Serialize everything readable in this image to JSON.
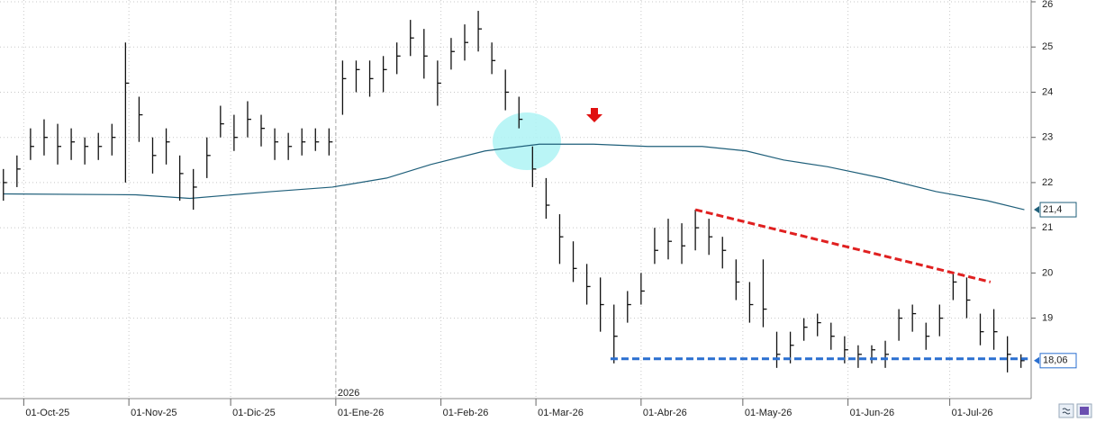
{
  "chart_data": {
    "type": "ohlc",
    "year_marker": {
      "value": 99,
      "label": "2026"
    },
    "xlim": [
      0,
      304
    ],
    "ylim": [
      17.22,
      26.04
    ],
    "xticks": [
      {
        "value": 7,
        "label": "01-Oct-25"
      },
      {
        "value": 38,
        "label": "01-Nov-25"
      },
      {
        "value": 68,
        "label": "01-Dic-25"
      },
      {
        "value": 99,
        "label": "01-Ene-26"
      },
      {
        "value": 130,
        "label": "01-Feb-26"
      },
      {
        "value": 158,
        "label": "01-Mar-26"
      },
      {
        "value": 189,
        "label": "01-Abr-26"
      },
      {
        "value": 219,
        "label": "01-May-26"
      },
      {
        "value": 250,
        "label": "01-Jun-26"
      },
      {
        "value": 280,
        "label": "01-Jul-26"
      }
    ],
    "yticks": [
      19,
      20,
      21,
      22,
      23,
      24,
      25,
      26
    ],
    "grid": true,
    "color": "#111111",
    "x": [
      1,
      5,
      9,
      13,
      17,
      21,
      25,
      29,
      33,
      37,
      41,
      45,
      49,
      53,
      57,
      61,
      65,
      69,
      73,
      77,
      81,
      85,
      89,
      93,
      97,
      101,
      105,
      109,
      113,
      117,
      121,
      125,
      129,
      133,
      137,
      141,
      145,
      149,
      153,
      157,
      161,
      165,
      169,
      173,
      177,
      181,
      185,
      189,
      193,
      197,
      201,
      205,
      209,
      213,
      217,
      221,
      225,
      229,
      233,
      237,
      241,
      245,
      249,
      253,
      257,
      261,
      265,
      269,
      273,
      277,
      281,
      285,
      289,
      293,
      297,
      301
    ],
    "high": [
      22.3,
      22.6,
      23.2,
      23.4,
      23.3,
      23.2,
      23.0,
      23.1,
      23.3,
      25.1,
      23.9,
      23.0,
      23.2,
      22.6,
      22.3,
      23.0,
      23.7,
      23.5,
      23.8,
      23.5,
      23.2,
      23.1,
      23.2,
      23.2,
      23.2,
      24.7,
      24.7,
      24.7,
      24.8,
      25.1,
      25.6,
      25.4,
      24.7,
      25.2,
      25.5,
      25.8,
      25.1,
      24.5,
      23.9,
      22.8,
      22.1,
      21.3,
      20.7,
      20.2,
      19.9,
      19.3,
      19.6,
      20.0,
      21.0,
      21.2,
      21.1,
      21.4,
      21.2,
      20.8,
      20.3,
      19.8,
      20.3,
      18.7,
      18.7,
      19.0,
      19.1,
      18.9,
      18.6,
      18.4,
      18.4,
      18.5,
      19.2,
      19.3,
      18.9,
      19.3,
      20.0,
      19.9,
      19.1,
      19.2,
      18.6,
      18.2
    ],
    "low": [
      21.6,
      21.9,
      22.5,
      22.6,
      22.4,
      22.5,
      22.4,
      22.5,
      22.6,
      22.0,
      22.9,
      22.2,
      22.4,
      21.6,
      21.4,
      22.1,
      23.0,
      22.7,
      23.0,
      22.8,
      22.5,
      22.5,
      22.6,
      22.7,
      22.6,
      23.5,
      24.0,
      23.9,
      24.0,
      24.4,
      24.8,
      24.3,
      23.7,
      24.5,
      24.7,
      24.9,
      24.4,
      23.6,
      23.2,
      21.9,
      21.2,
      20.2,
      19.8,
      19.3,
      18.7,
      18.0,
      18.9,
      19.3,
      20.2,
      20.3,
      20.2,
      20.5,
      20.4,
      20.1,
      19.4,
      18.9,
      18.8,
      17.9,
      18.0,
      18.5,
      18.6,
      18.3,
      18.0,
      17.9,
      18.0,
      17.9,
      18.5,
      18.7,
      18.3,
      18.6,
      19.4,
      19.0,
      18.4,
      18.3,
      17.8,
      17.9
    ],
    "close": [
      22.0,
      22.3,
      22.8,
      23.0,
      22.8,
      22.9,
      22.8,
      22.8,
      23.0,
      24.2,
      23.5,
      22.6,
      22.9,
      22.2,
      21.9,
      22.6,
      23.3,
      23.0,
      23.4,
      23.2,
      22.9,
      22.8,
      22.9,
      22.9,
      22.9,
      24.3,
      24.5,
      24.3,
      24.5,
      24.8,
      25.2,
      24.8,
      24.2,
      24.9,
      25.1,
      25.4,
      24.7,
      24.0,
      23.4,
      22.3,
      21.5,
      20.8,
      20.1,
      19.7,
      19.3,
      18.6,
      19.3,
      19.6,
      20.5,
      20.7,
      20.6,
      21.0,
      20.8,
      20.5,
      19.8,
      19.3,
      19.2,
      18.2,
      18.4,
      18.8,
      18.9,
      18.6,
      18.3,
      18.2,
      18.3,
      18.2,
      19.0,
      19.1,
      18.6,
      19.0,
      19.8,
      19.4,
      18.7,
      18.7,
      18.2,
      18.06
    ],
    "moving_average": {
      "color": "#1f5f7a",
      "x": [
        1,
        40,
        56,
        80,
        98,
        114,
        127,
        143,
        159,
        175,
        191,
        207,
        220,
        231,
        244,
        260,
        276,
        291,
        302
      ],
      "values": [
        21.75,
        21.73,
        21.65,
        21.8,
        21.9,
        22.1,
        22.4,
        22.7,
        22.85,
        22.85,
        22.8,
        22.8,
        22.7,
        22.5,
        22.35,
        22.1,
        21.8,
        21.6,
        21.4
      ]
    },
    "trend_lines": [
      {
        "color": "#e02020",
        "x": [
          205,
          292
        ],
        "values": [
          21.4,
          19.8
        ]
      },
      {
        "color": "#2a6fd0",
        "x": [
          180,
          303
        ],
        "values": [
          18.1,
          18.1
        ]
      }
    ],
    "last_labels": [
      {
        "value": 21.4,
        "label": "21,4",
        "color": "#1f5f7a"
      },
      {
        "value": 18.06,
        "label": "18,06",
        "color": "#2a6fd0"
      }
    ]
  }
}
